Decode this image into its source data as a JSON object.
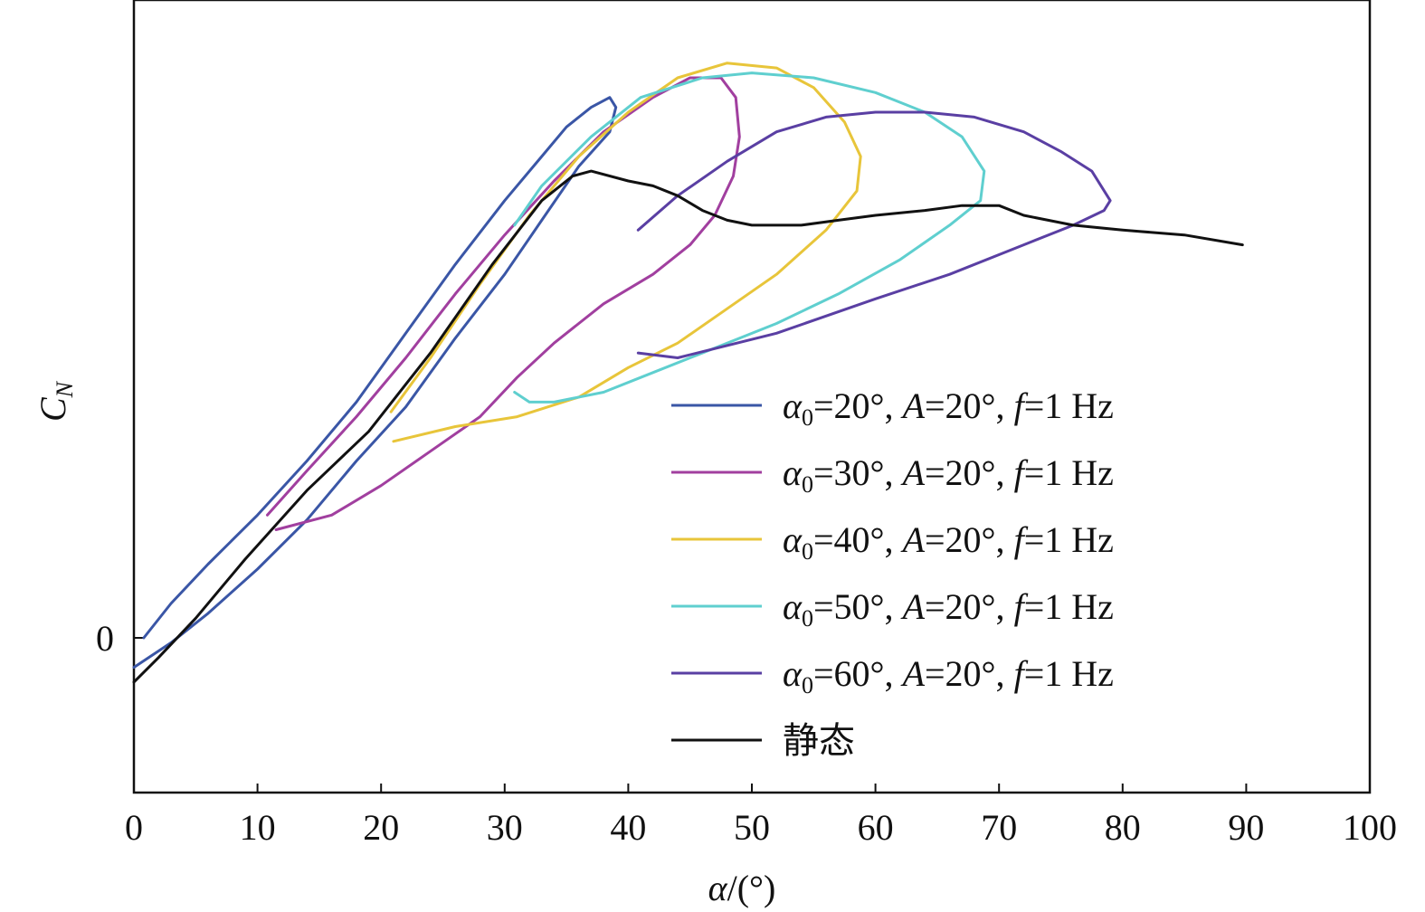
{
  "chart_data": {
    "type": "line",
    "title": "",
    "xlabel": "α/(°)",
    "ylabel": "C_N",
    "xlim": [
      0,
      100
    ],
    "xticks": [
      "0",
      "10",
      "20",
      "30",
      "40",
      "50",
      "60",
      "70",
      "80",
      "90",
      "100"
    ],
    "yticks": [
      "0"
    ],
    "grid": false,
    "legend_position": "lower-right",
    "y_units": "C_N (unlabeled scale; 0 marked, values relative)",
    "ylim": [
      -0.13,
      1.34
    ],
    "series": [
      {
        "name": "α0=20°, A=20°, f=1 Hz",
        "legend": {
          "a0": "20",
          "A": "20",
          "f": "1"
        },
        "color": "#3a56a6",
        "x": [
          0.8,
          3,
          6,
          10,
          14,
          18,
          22,
          26,
          30,
          33,
          35,
          37,
          38.5,
          39,
          38.5,
          36,
          33,
          30,
          26,
          22,
          18,
          14,
          10,
          6,
          3,
          0
        ],
        "y": [
          0.0,
          0.07,
          0.15,
          0.25,
          0.36,
          0.48,
          0.62,
          0.76,
          0.89,
          0.98,
          1.04,
          1.08,
          1.1,
          1.08,
          1.03,
          0.96,
          0.85,
          0.74,
          0.61,
          0.47,
          0.36,
          0.24,
          0.14,
          0.05,
          -0.01,
          -0.06
        ]
      },
      {
        "name": "α0=30°, A=20°, f=1 Hz",
        "legend": {
          "a0": "30",
          "A": "20",
          "f": "1"
        },
        "color": "#a13f9f",
        "x": [
          10.8,
          14,
          18,
          22,
          26,
          30,
          34,
          38,
          42,
          45,
          47.5,
          48.7,
          49,
          48.5,
          47,
          45,
          42,
          38,
          34,
          31,
          28,
          24,
          20,
          16,
          11.5
        ],
        "y": [
          0.25,
          0.34,
          0.45,
          0.57,
          0.7,
          0.82,
          0.93,
          1.03,
          1.1,
          1.14,
          1.14,
          1.1,
          1.02,
          0.94,
          0.86,
          0.8,
          0.74,
          0.68,
          0.6,
          0.53,
          0.45,
          0.38,
          0.31,
          0.25,
          0.22
        ]
      },
      {
        "name": "α0=40°, A=20°, f=1 Hz",
        "legend": {
          "a0": "40",
          "A": "20",
          "f": "1"
        },
        "color": "#e8c53a",
        "x": [
          20.8,
          24,
          28,
          32,
          36,
          40,
          44,
          48,
          52,
          55,
          57.5,
          58.8,
          58.5,
          56,
          52,
          48,
          44,
          40,
          36,
          31,
          26,
          21
        ],
        "y": [
          0.46,
          0.57,
          0.72,
          0.86,
          0.98,
          1.07,
          1.14,
          1.17,
          1.16,
          1.12,
          1.05,
          0.98,
          0.91,
          0.83,
          0.74,
          0.67,
          0.6,
          0.55,
          0.49,
          0.45,
          0.43,
          0.4
        ]
      },
      {
        "name": "α0=50°, A=20°, f=1 Hz",
        "legend": {
          "a0": "50",
          "A": "20",
          "f": "1"
        },
        "color": "#5fcfcf",
        "x": [
          30.8,
          33,
          37,
          41,
          46,
          50,
          55,
          60,
          64,
          67,
          68.8,
          68.5,
          66,
          62,
          57,
          52,
          46,
          41,
          38,
          34,
          32,
          30.8
        ],
        "y": [
          0.84,
          0.92,
          1.02,
          1.1,
          1.14,
          1.15,
          1.14,
          1.11,
          1.07,
          1.02,
          0.95,
          0.89,
          0.84,
          0.77,
          0.7,
          0.64,
          0.58,
          0.53,
          0.5,
          0.48,
          0.48,
          0.5
        ]
      },
      {
        "name": "α0=60°, A=20°, f=1 Hz",
        "legend": {
          "a0": "60",
          "A": "20",
          "f": "1"
        },
        "color": "#5a3fa3",
        "x": [
          40.8,
          44,
          48,
          52,
          56,
          60,
          64,
          68,
          72,
          75,
          77.5,
          79,
          78.5,
          76,
          72,
          66,
          60,
          52,
          44,
          40.8
        ],
        "y": [
          0.83,
          0.9,
          0.97,
          1.03,
          1.06,
          1.07,
          1.07,
          1.06,
          1.03,
          0.99,
          0.95,
          0.89,
          0.87,
          0.84,
          0.8,
          0.74,
          0.69,
          0.62,
          0.57,
          0.58
        ]
      },
      {
        "name": "静态",
        "legend": {
          "label": "静态"
        },
        "color": "#111111",
        "x": [
          0,
          2,
          5,
          9,
          14,
          19,
          24,
          29,
          33,
          35.5,
          37,
          40,
          42,
          44,
          46,
          48,
          50,
          52,
          54,
          57,
          60,
          64,
          67,
          70,
          72,
          76,
          80,
          85,
          89.7
        ],
        "y": [
          -0.09,
          -0.04,
          0.04,
          0.16,
          0.3,
          0.42,
          0.58,
          0.76,
          0.89,
          0.94,
          0.95,
          0.93,
          0.92,
          0.9,
          0.87,
          0.85,
          0.84,
          0.84,
          0.84,
          0.85,
          0.86,
          0.87,
          0.88,
          0.88,
          0.86,
          0.84,
          0.83,
          0.82,
          0.8
        ]
      }
    ]
  },
  "legend_static": {
    "alpha_symbol": "α",
    "sub": "0",
    "A_symbol": "A",
    "f_symbol": "f",
    "deg": "°",
    "hz": "Hz"
  }
}
